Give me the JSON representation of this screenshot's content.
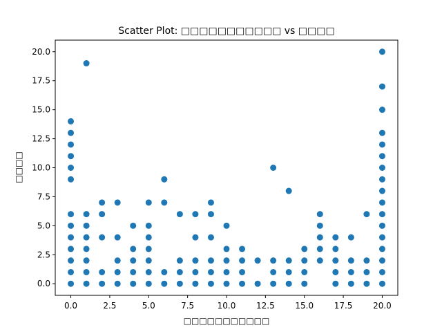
{
  "chart_data": {
    "type": "scatter",
    "title": "Scatter Plot: □□□□□□□□□□□ vs □□□□",
    "xlabel": "□□□□□□□□□□□",
    "ylabel": "□□□□",
    "xlim": [
      -1,
      21
    ],
    "ylim": [
      -1,
      21
    ],
    "xticks": [
      "0.0",
      "2.5",
      "5.0",
      "7.5",
      "10.0",
      "12.5",
      "15.0",
      "17.5",
      "20.0"
    ],
    "yticks": [
      "0.0",
      "2.5",
      "5.0",
      "7.5",
      "10.0",
      "12.5",
      "15.0",
      "17.5",
      "20.0"
    ],
    "grid": false,
    "color": "#1f77b4",
    "points": [
      [
        0,
        0
      ],
      [
        0,
        1
      ],
      [
        0,
        2
      ],
      [
        0,
        3
      ],
      [
        0,
        4
      ],
      [
        0,
        5
      ],
      [
        0,
        6
      ],
      [
        0,
        9
      ],
      [
        0,
        10
      ],
      [
        0,
        11
      ],
      [
        0,
        12
      ],
      [
        0,
        13
      ],
      [
        0,
        14
      ],
      [
        1,
        0
      ],
      [
        1,
        1
      ],
      [
        1,
        2
      ],
      [
        1,
        3
      ],
      [
        1,
        4
      ],
      [
        1,
        5
      ],
      [
        1,
        6
      ],
      [
        1,
        19
      ],
      [
        2,
        0
      ],
      [
        2,
        1
      ],
      [
        2,
        4
      ],
      [
        2,
        6
      ],
      [
        2,
        7
      ],
      [
        3,
        0
      ],
      [
        3,
        1
      ],
      [
        3,
        2
      ],
      [
        3,
        4
      ],
      [
        3,
        7
      ],
      [
        4,
        0
      ],
      [
        4,
        1
      ],
      [
        4,
        2
      ],
      [
        4,
        3
      ],
      [
        4,
        5
      ],
      [
        5,
        0
      ],
      [
        5,
        1
      ],
      [
        5,
        2
      ],
      [
        5,
        3
      ],
      [
        5,
        4
      ],
      [
        5,
        5
      ],
      [
        5,
        7
      ],
      [
        6,
        0
      ],
      [
        6,
        1
      ],
      [
        6,
        7
      ],
      [
        6,
        9
      ],
      [
        7,
        0
      ],
      [
        7,
        1
      ],
      [
        7,
        2
      ],
      [
        7,
        6
      ],
      [
        8,
        0
      ],
      [
        8,
        1
      ],
      [
        8,
        2
      ],
      [
        8,
        4
      ],
      [
        8,
        6
      ],
      [
        9,
        0
      ],
      [
        9,
        1
      ],
      [
        9,
        2
      ],
      [
        9,
        4
      ],
      [
        9,
        6
      ],
      [
        9,
        7
      ],
      [
        10,
        0
      ],
      [
        10,
        1
      ],
      [
        10,
        2
      ],
      [
        10,
        3
      ],
      [
        10,
        5
      ],
      [
        11,
        0
      ],
      [
        11,
        1
      ],
      [
        11,
        2
      ],
      [
        11,
        3
      ],
      [
        12,
        0
      ],
      [
        12,
        2
      ],
      [
        13,
        0
      ],
      [
        13,
        1
      ],
      [
        13,
        2
      ],
      [
        13,
        10
      ],
      [
        14,
        0
      ],
      [
        14,
        1
      ],
      [
        14,
        2
      ],
      [
        14,
        8
      ],
      [
        15,
        0
      ],
      [
        15,
        1
      ],
      [
        15,
        2
      ],
      [
        15,
        3
      ],
      [
        16,
        2
      ],
      [
        16,
        3
      ],
      [
        16,
        4
      ],
      [
        16,
        5
      ],
      [
        16,
        6
      ],
      [
        17,
        0
      ],
      [
        17,
        1
      ],
      [
        17,
        2
      ],
      [
        17,
        3
      ],
      [
        17,
        4
      ],
      [
        18,
        0
      ],
      [
        18,
        1
      ],
      [
        18,
        2
      ],
      [
        18,
        4
      ],
      [
        19,
        0
      ],
      [
        19,
        1
      ],
      [
        19,
        2
      ],
      [
        19,
        6
      ],
      [
        20,
        0
      ],
      [
        20,
        1
      ],
      [
        20,
        2
      ],
      [
        20,
        3
      ],
      [
        20,
        4
      ],
      [
        20,
        5
      ],
      [
        20,
        6
      ],
      [
        20,
        7
      ],
      [
        20,
        8
      ],
      [
        20,
        9
      ],
      [
        20,
        10
      ],
      [
        20,
        11
      ],
      [
        20,
        12
      ],
      [
        20,
        13
      ],
      [
        20,
        15
      ],
      [
        20,
        17
      ],
      [
        20,
        20
      ]
    ]
  }
}
